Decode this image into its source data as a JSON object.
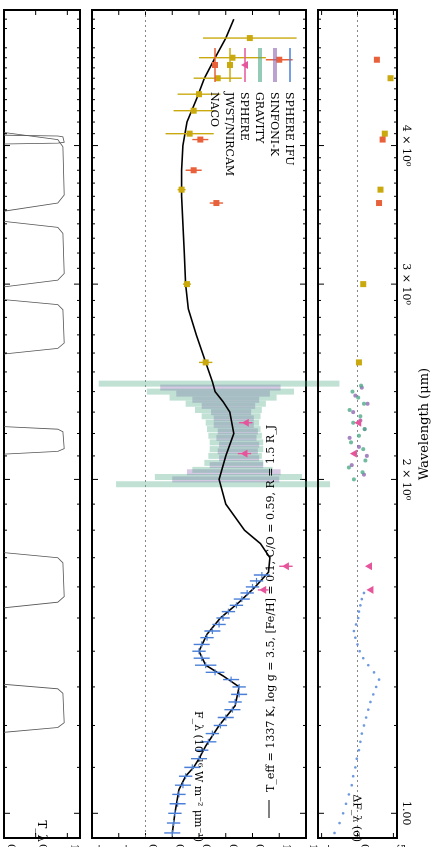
{
  "chart_data": [
    {
      "type": "line",
      "panel": "filter-transmission",
      "ylabel": "T_λ",
      "ylim": [
        0.0,
        1.2
      ],
      "yticks": [
        0.0,
        0.5,
        1.0
      ],
      "filters": [
        {
          "center": 1.245,
          "width": 0.1
        },
        {
          "center": 1.625,
          "width": 0.15
        },
        {
          "center": 2.17,
          "width": 0.1
        },
        {
          "center": 2.75,
          "width": 0.25
        },
        {
          "center": 3.2,
          "width": 0.35
        },
        {
          "center": 3.8,
          "width": 0.5
        },
        {
          "center": 4.05,
          "width": 0.06
        }
      ]
    },
    {
      "type": "scatter",
      "panel": "spectrum",
      "xlabel": "Wavelength (μm)",
      "ylabel": "F_λ (10⁻¹⁶ W m⁻² μm⁻¹)",
      "xscale": "log",
      "xlim": [
        0.95,
        5.3
      ],
      "xticks": [
        {
          "value": 1.0,
          "label": "1.00"
        },
        {
          "value": 2.0,
          "label": "2 × 10⁰"
        },
        {
          "value": 3.0,
          "label": "3 × 10⁰"
        },
        {
          "value": 4.0,
          "label": "4 × 10⁰"
        }
      ],
      "ylim": [
        -0.4,
        1.2
      ],
      "yticks": [
        -0.4,
        -0.2,
        0.0,
        0.2,
        0.4,
        0.6,
        0.8,
        1.0,
        1.2
      ],
      "annotation": "T_eff = 1337 K, log g = 3.5, [Fe/H] = 0.1, C/O = 0.59, R = 1.5 R_J",
      "model": {
        "name": "model",
        "x": [
          0.96,
          1.0,
          1.05,
          1.08,
          1.1,
          1.12,
          1.15,
          1.2,
          1.25,
          1.3,
          1.33,
          1.36,
          1.4,
          1.45,
          1.5,
          1.55,
          1.6,
          1.65,
          1.7,
          1.75,
          1.8,
          1.9,
          2.0,
          2.1,
          2.2,
          2.3,
          2.35,
          2.4,
          2.45,
          2.55,
          2.7,
          2.85,
          3.0,
          3.2,
          3.4,
          3.6,
          3.8,
          4.0,
          4.2,
          4.4,
          4.6,
          4.8,
          5.0,
          5.2
        ],
        "y": [
          0.2,
          0.22,
          0.25,
          0.3,
          0.36,
          0.4,
          0.45,
          0.55,
          0.67,
          0.7,
          0.58,
          0.45,
          0.4,
          0.46,
          0.56,
          0.7,
          0.82,
          0.92,
          0.93,
          0.86,
          0.74,
          0.6,
          0.55,
          0.6,
          0.66,
          0.63,
          0.58,
          0.52,
          0.5,
          0.45,
          0.38,
          0.32,
          0.3,
          0.29,
          0.28,
          0.27,
          0.27,
          0.28,
          0.31,
          0.38,
          0.44,
          0.52,
          0.6,
          0.66
        ]
      },
      "series": [
        {
          "name": "SPHERE IFU",
          "color": "#4a7fd8",
          "marker": "dash-errorbar",
          "x": [
            0.96,
            0.98,
            1.0,
            1.02,
            1.04,
            1.06,
            1.08,
            1.1,
            1.12,
            1.14,
            1.16,
            1.18,
            1.2,
            1.22,
            1.24,
            1.26,
            1.28,
            1.3,
            1.32,
            1.34,
            1.36,
            1.38,
            1.4,
            1.42,
            1.44,
            1.46,
            1.48,
            1.5,
            1.52,
            1.54,
            1.56,
            1.58,
            1.6,
            1.62,
            1.64
          ],
          "y": [
            0.2,
            0.21,
            0.22,
            0.24,
            0.25,
            0.28,
            0.3,
            0.35,
            0.4,
            0.42,
            0.47,
            0.5,
            0.56,
            0.6,
            0.65,
            0.67,
            0.7,
            0.7,
            0.64,
            0.52,
            0.45,
            0.42,
            0.4,
            0.42,
            0.46,
            0.5,
            0.55,
            0.58,
            0.62,
            0.68,
            0.72,
            0.76,
            0.8,
            0.83,
            0.87
          ],
          "err": [
            0.06,
            0.05,
            0.05,
            0.06,
            0.05,
            0.06,
            0.05,
            0.06,
            0.06,
            0.05,
            0.06,
            0.05,
            0.05,
            0.06,
            0.06,
            0.05,
            0.06,
            0.05,
            0.06,
            0.07,
            0.08,
            0.06,
            0.05,
            0.06,
            0.05,
            0.06,
            0.05,
            0.05,
            0.05,
            0.05,
            0.06,
            0.05,
            0.05,
            0.05,
            0.06
          ]
        },
        {
          "name": "SINFONI-K",
          "color": "#8e66b3",
          "marker": "band",
          "x": [
            2.0,
            2.03,
            2.06,
            2.09,
            2.12,
            2.15,
            2.18,
            2.21,
            2.24,
            2.27,
            2.3,
            2.33,
            2.36,
            2.39,
            2.42
          ],
          "y": [
            0.6,
            0.66,
            0.68,
            0.7,
            0.69,
            0.7,
            0.68,
            0.69,
            0.66,
            0.66,
            0.64,
            0.62,
            0.6,
            0.58,
            0.56
          ],
          "err": [
            0.4,
            0.35,
            0.2,
            0.15,
            0.15,
            0.15,
            0.15,
            0.15,
            0.15,
            0.15,
            0.15,
            0.2,
            0.25,
            0.35,
            0.45
          ]
        },
        {
          "name": "GRAVITY",
          "color": "#4daa87",
          "marker": "band",
          "x": [
            1.98,
            2.01,
            2.04,
            2.07,
            2.1,
            2.13,
            2.16,
            2.19,
            2.22,
            2.25,
            2.28,
            2.31,
            2.34,
            2.37,
            2.4,
            2.44
          ],
          "y": [
            0.58,
            0.62,
            0.65,
            0.66,
            0.67,
            0.68,
            0.68,
            0.67,
            0.66,
            0.65,
            0.64,
            0.62,
            0.6,
            0.58,
            0.56,
            0.55
          ],
          "err": [
            0.8,
            0.55,
            0.3,
            0.22,
            0.2,
            0.2,
            0.2,
            0.2,
            0.2,
            0.2,
            0.22,
            0.25,
            0.3,
            0.4,
            0.55,
            0.9
          ]
        },
        {
          "name": "SPHERE",
          "color": "#e6559c",
          "marker": "triangle",
          "x": [
            1.59,
            1.67,
            2.11,
            2.25
          ],
          "y": [
            0.88,
            1.05,
            0.74,
            0.75
          ],
          "err": [
            0.04,
            0.05,
            0.05,
            0.05
          ]
        },
        {
          "name": "JWST/NIRCAM",
          "color": "#c9a90d",
          "marker": "square",
          "x": [
            2.55,
            3.0,
            3.65,
            4.1,
            4.3,
            4.45,
            4.6,
            4.8,
            5.0
          ],
          "y": [
            0.45,
            0.31,
            0.27,
            0.33,
            0.36,
            0.4,
            0.54,
            0.65,
            0.78
          ],
          "err": [
            0.05,
            0.03,
            0.03,
            0.18,
            0.15,
            0.16,
            0.18,
            0.25,
            0.35
          ]
        },
        {
          "name": "NACO",
          "color": "#e8613b",
          "marker": "square",
          "x": [
            3.55,
            3.8,
            4.05,
            4.78
          ],
          "y": [
            0.53,
            0.36,
            0.41,
            1.0
          ],
          "err": [
            0.05,
            0.06,
            0.06,
            0.1
          ]
        }
      ],
      "legend": {
        "placement": "top-right"
      }
    },
    {
      "type": "scatter",
      "panel": "residuals",
      "ylabel": "ΔF_λ (σ)",
      "ylim": [
        -5.5,
        5.5
      ],
      "yticks": [
        -5,
        0,
        5
      ],
      "series": [
        {
          "name": "SPHERE IFU",
          "color": "#4a7fd8",
          "x": [
            0.96,
            0.98,
            1.0,
            1.02,
            1.04,
            1.06,
            1.08,
            1.1,
            1.12,
            1.14,
            1.16,
            1.18,
            1.2,
            1.22,
            1.24,
            1.26,
            1.28,
            1.3,
            1.32,
            1.34,
            1.36,
            1.38,
            1.4,
            1.42,
            1.44,
            1.46,
            1.48,
            1.5,
            1.52,
            1.54,
            1.56,
            1.58
          ],
          "y": [
            -3.2,
            -2.5,
            -2.0,
            -1.6,
            -1.2,
            -0.8,
            -0.6,
            -0.3,
            -0.1,
            0.2,
            0.4,
            0.6,
            0.9,
            1.2,
            1.5,
            1.8,
            2.2,
            2.6,
            3.0,
            2.3,
            1.5,
            0.8,
            0.3,
            0.0,
            -0.3,
            -0.5,
            -0.2,
            0.1,
            0.2,
            0.4,
            0.6,
            0.9
          ]
        },
        {
          "name": "SINFONI-K",
          "color": "#8e66b3",
          "x": [
            2.02,
            2.06,
            2.1,
            2.14,
            2.18,
            2.22,
            2.26,
            2.3,
            2.34,
            2.38,
            2.42
          ],
          "y": [
            0.9,
            -0.8,
            1.3,
            0.2,
            -1.1,
            1.0,
            0.4,
            -0.6,
            1.4,
            -0.3,
            0.6
          ]
        },
        {
          "name": "GRAVITY",
          "color": "#4daa87",
          "x": [
            2.0,
            2.03,
            2.05,
            2.08,
            2.11,
            2.13,
            2.16,
            2.19,
            2.22,
            2.25,
            2.28,
            2.31,
            2.34,
            2.37,
            2.4,
            2.43
          ],
          "y": [
            -0.5,
            0.7,
            -1.2,
            1.1,
            -0.3,
            0.8,
            -0.9,
            0.2,
            1.0,
            -0.6,
            0.4,
            -1.1,
            0.9,
            0.1,
            -0.7,
            0.5
          ]
        },
        {
          "name": "SPHERE",
          "color": "#e6559c",
          "x": [
            1.59,
            1.67,
            2.11,
            2.25
          ],
          "y": [
            1.8,
            1.6,
            -0.5,
            0.1
          ]
        },
        {
          "name": "JWST/NIRCAM",
          "color": "#c9a90d",
          "x": [
            2.55,
            3.0,
            3.65,
            4.1,
            4.6
          ],
          "y": [
            0.2,
            0.8,
            3.2,
            3.8,
            4.6
          ]
        },
        {
          "name": "NACO",
          "color": "#e8613b",
          "x": [
            3.55,
            4.05,
            4.78
          ],
          "y": [
            3.0,
            3.5,
            2.7
          ]
        }
      ]
    }
  ]
}
